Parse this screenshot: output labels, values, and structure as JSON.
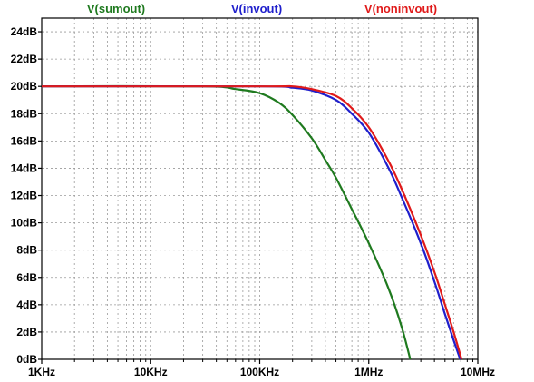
{
  "chart_data": {
    "type": "line",
    "xscale": "log",
    "xlim": [
      1000,
      10000000
    ],
    "ylim": [
      0,
      25
    ],
    "y_unit": "dB",
    "grid": true,
    "legend_placement": "top",
    "x_ticks": [
      {
        "value": 1000,
        "label": "1KHz"
      },
      {
        "value": 10000,
        "label": "10KHz"
      },
      {
        "value": 100000,
        "label": "100KHz"
      },
      {
        "value": 1000000,
        "label": "1MHz"
      },
      {
        "value": 10000000,
        "label": "10MHz"
      }
    ],
    "y_ticks": [
      {
        "value": 0,
        "label": "0dB"
      },
      {
        "value": 2,
        "label": "2dB"
      },
      {
        "value": 4,
        "label": "4dB"
      },
      {
        "value": 6,
        "label": "6dB"
      },
      {
        "value": 8,
        "label": "8dB"
      },
      {
        "value": 10,
        "label": "10dB"
      },
      {
        "value": 12,
        "label": "12dB"
      },
      {
        "value": 14,
        "label": "14dB"
      },
      {
        "value": 16,
        "label": "16dB"
      },
      {
        "value": 18,
        "label": "18dB"
      },
      {
        "value": 20,
        "label": "20dB"
      },
      {
        "value": 22,
        "label": "22dB"
      },
      {
        "value": 24,
        "label": "24dB"
      }
    ],
    "series": [
      {
        "name": "V(sumout)",
        "color": "#1f7a1f",
        "points": [
          [
            1000,
            20.0
          ],
          [
            30000,
            20.0
          ],
          [
            60000,
            19.8
          ],
          [
            100000,
            19.5
          ],
          [
            150000,
            18.8
          ],
          [
            200000,
            17.9
          ],
          [
            300000,
            16.2
          ],
          [
            400000,
            14.6
          ],
          [
            500000,
            13.3
          ],
          [
            700000,
            11.0
          ],
          [
            1000000,
            8.5
          ],
          [
            1500000,
            5.3
          ],
          [
            2000000,
            2.4
          ],
          [
            2400000,
            0.0
          ]
        ]
      },
      {
        "name": "V(invout)",
        "color": "#1f1fcc",
        "points": [
          [
            1000,
            20.0
          ],
          [
            100000,
            20.0
          ],
          [
            200000,
            19.9
          ],
          [
            300000,
            19.7
          ],
          [
            500000,
            19.0
          ],
          [
            700000,
            18.0
          ],
          [
            1000000,
            16.6
          ],
          [
            1500000,
            14.1
          ],
          [
            2000000,
            11.9
          ],
          [
            3000000,
            8.5
          ],
          [
            4000000,
            5.7
          ],
          [
            5000000,
            3.3
          ],
          [
            6000000,
            1.4
          ],
          [
            6900000,
            0.0
          ]
        ]
      },
      {
        "name": "V(noninvout)",
        "color": "#e01a1a",
        "points": [
          [
            1000,
            20.0
          ],
          [
            100000,
            20.0
          ],
          [
            200000,
            20.0
          ],
          [
            300000,
            19.8
          ],
          [
            500000,
            19.3
          ],
          [
            700000,
            18.4
          ],
          [
            1000000,
            17.0
          ],
          [
            1500000,
            14.6
          ],
          [
            2000000,
            12.5
          ],
          [
            3000000,
            9.1
          ],
          [
            4000000,
            6.4
          ],
          [
            5000000,
            4.0
          ],
          [
            6000000,
            2.0
          ],
          [
            7100000,
            0.0
          ]
        ]
      }
    ]
  }
}
